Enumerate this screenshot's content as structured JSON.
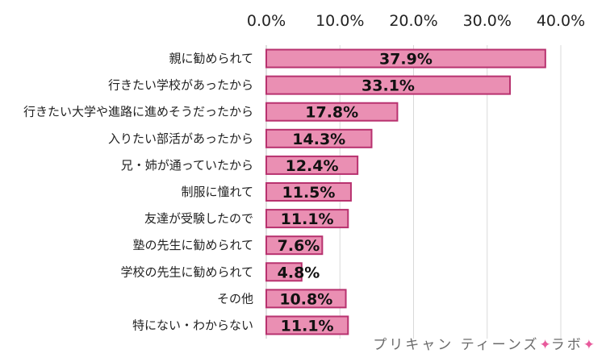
{
  "chart_data": {
    "type": "bar",
    "orientation": "horizontal",
    "categories": [
      "親に勧められて",
      "行きたい学校があったから",
      "行きたい大学や進路に進めそうだったから",
      "入りたい部活があったから",
      "兄・姉が通っていたから",
      "制服に憧れて",
      "友達が受験したので",
      "塾の先生に勧められて",
      "学校の先生に勧められて",
      "その他",
      "特にない・わからない"
    ],
    "values": [
      37.9,
      33.1,
      17.8,
      14.3,
      12.4,
      11.5,
      11.1,
      7.6,
      4.8,
      10.8,
      11.1
    ],
    "value_labels": [
      "37.9%",
      "33.1%",
      "17.8%",
      "14.3%",
      "12.4%",
      "11.5%",
      "11.1%",
      "7.6%",
      "4.8%",
      "10.8%",
      "11.1%"
    ],
    "xlim": [
      0,
      40
    ],
    "x_ticks": [
      0,
      10,
      20,
      30,
      40
    ],
    "x_tick_labels": [
      "0.0%",
      "10.0%",
      "20.0%",
      "30.0%",
      "40.0%"
    ],
    "x_axis_position": "top",
    "grid": true,
    "legend": "none",
    "colors": {
      "bar_fill": "#ea8fb3",
      "bar_stroke": "#b8326f",
      "grid": "#d9d9d9",
      "text": "#222222"
    }
  },
  "watermark": {
    "text": "プリキャン ティーンズ",
    "star1": "✦",
    "text2": "ラボ",
    "star2": "✦"
  }
}
